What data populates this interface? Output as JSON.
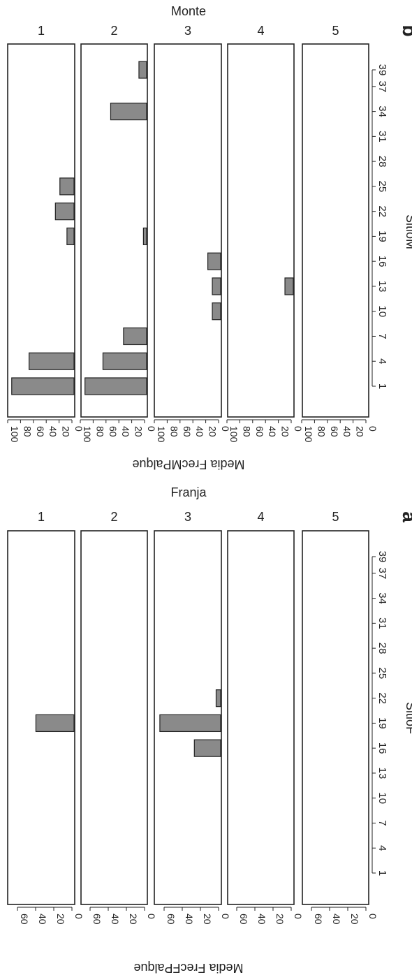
{
  "chart_data": [
    {
      "type": "bar",
      "id": "b",
      "panel_letter": "b",
      "title": "Monte",
      "xlabel": "SitioM",
      "ylabel": "Media FrecMPalque",
      "x_ticks": [
        "1",
        "4",
        "7",
        "10",
        "13",
        "16",
        "19",
        "22",
        "25",
        "28",
        "31",
        "34",
        "37",
        "39"
      ],
      "y_ticks": [
        "100",
        "80",
        "60",
        "40",
        "20",
        "0"
      ],
      "ylim": [
        0,
        100
      ],
      "panels": [
        {
          "label": "1",
          "bars": [
            {
              "x": 1,
              "value": 97
            },
            {
              "x": 4,
              "value": 70
            },
            {
              "x": 19,
              "value": 11
            },
            {
              "x": 22,
              "value": 29
            },
            {
              "x": 25,
              "value": 22
            }
          ]
        },
        {
          "label": "2",
          "bars": [
            {
              "x": 1,
              "value": 96
            },
            {
              "x": 4,
              "value": 68
            },
            {
              "x": 7,
              "value": 36
            },
            {
              "x": 19,
              "value": 5
            },
            {
              "x": 34,
              "value": 56
            },
            {
              "x": 39,
              "value": 12
            }
          ]
        },
        {
          "label": "3",
          "bars": [
            {
              "x": 10,
              "value": 13
            },
            {
              "x": 13,
              "value": 13
            },
            {
              "x": 16,
              "value": 20
            }
          ]
        },
        {
          "label": "4",
          "bars": [
            {
              "x": 13,
              "value": 13
            }
          ]
        },
        {
          "label": "5",
          "bars": []
        }
      ]
    },
    {
      "type": "bar",
      "id": "a",
      "panel_letter": "a",
      "title": "Franja",
      "xlabel": "SitioF",
      "ylabel": "Media FrecFPalque",
      "x_ticks": [
        "1",
        "4",
        "7",
        "10",
        "13",
        "16",
        "19",
        "22",
        "25",
        "28",
        "31",
        "34",
        "37",
        "39"
      ],
      "y_ticks": [
        "60",
        "40",
        "20",
        "0"
      ],
      "ylim": [
        0,
        72
      ],
      "panels": [
        {
          "label": "1",
          "bars": [
            {
              "x": 19,
              "value": 42
            }
          ]
        },
        {
          "label": "2",
          "bars": []
        },
        {
          "label": "3",
          "bars": [
            {
              "x": 16,
              "value": 29
            },
            {
              "x": 19,
              "value": 67
            },
            {
              "x": 22,
              "value": 5
            }
          ]
        },
        {
          "label": "4",
          "bars": []
        },
        {
          "label": "5",
          "bars": []
        }
      ]
    }
  ]
}
